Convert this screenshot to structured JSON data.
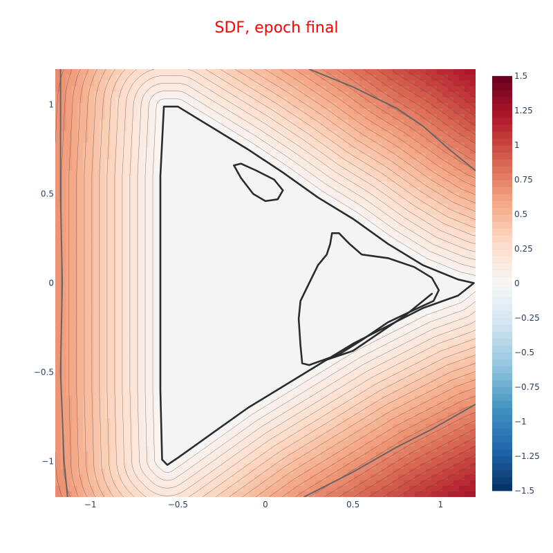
{
  "chart_data": {
    "type": "contour",
    "title": "SDF, epoch final",
    "title_color": "#ff0000",
    "xlabel": "",
    "ylabel": "",
    "xlim": [
      -1.2,
      1.2
    ],
    "ylim": [
      -1.2,
      1.2
    ],
    "x_ticks": [
      {
        "value": -1,
        "label": "−1"
      },
      {
        "value": -0.5,
        "label": "−0.5"
      },
      {
        "value": 0,
        "label": "0"
      },
      {
        "value": 0.5,
        "label": "0.5"
      },
      {
        "value": 1,
        "label": "1"
      }
    ],
    "y_ticks": [
      {
        "value": 1,
        "label": "1"
      },
      {
        "value": 0.5,
        "label": "0.5"
      },
      {
        "value": 0,
        "label": "0"
      },
      {
        "value": -0.5,
        "label": "−0.5"
      },
      {
        "value": -1,
        "label": "−1"
      }
    ],
    "colorscale": "RdBu (reversed)",
    "colorbar": {
      "range": [
        -1.5,
        1.5
      ],
      "ticks": [
        {
          "value": 1.5,
          "label": "1.5"
        },
        {
          "value": 1.25,
          "label": "1.25"
        },
        {
          "value": 1,
          "label": "1"
        },
        {
          "value": 0.75,
          "label": "0.75"
        },
        {
          "value": 0.5,
          "label": "0.5"
        },
        {
          "value": 0.25,
          "label": "0.25"
        },
        {
          "value": 0,
          "label": "0"
        },
        {
          "value": -0.25,
          "label": "−0.25"
        },
        {
          "value": -0.5,
          "label": "−0.5"
        },
        {
          "value": -0.75,
          "label": "−0.75"
        },
        {
          "value": -1,
          "label": "−1"
        },
        {
          "value": -1.25,
          "label": "−1.25"
        },
        {
          "value": -1.5,
          "label": "−1.5"
        }
      ],
      "step": 0.05
    },
    "zero_level_contours": [
      {
        "name": "outer-triangle",
        "points": [
          [
            -0.58,
            0.99
          ],
          [
            -0.5,
            0.99
          ],
          [
            -0.3,
            0.87
          ],
          [
            -0.1,
            0.75
          ],
          [
            0.1,
            0.62
          ],
          [
            0.3,
            0.48
          ],
          [
            0.5,
            0.36
          ],
          [
            0.7,
            0.22
          ],
          [
            0.9,
            0.1
          ],
          [
            1.1,
            0.02
          ],
          [
            1.19,
            0.0
          ],
          [
            1.1,
            -0.07
          ],
          [
            0.9,
            -0.14
          ],
          [
            0.7,
            -0.24
          ],
          [
            0.5,
            -0.34
          ],
          [
            0.3,
            -0.46
          ],
          [
            0.1,
            -0.58
          ],
          [
            -0.1,
            -0.7
          ],
          [
            -0.3,
            -0.84
          ],
          [
            -0.5,
            -0.98
          ],
          [
            -0.56,
            -1.02
          ],
          [
            -0.59,
            -0.99
          ],
          [
            -0.6,
            -0.6
          ],
          [
            -0.6,
            0.0
          ],
          [
            -0.6,
            0.6
          ],
          [
            -0.58,
            0.99
          ]
        ]
      },
      {
        "name": "inner-loop-top",
        "points": [
          [
            -0.18,
            0.66
          ],
          [
            -0.14,
            0.67
          ],
          [
            -0.05,
            0.63
          ],
          [
            0.05,
            0.58
          ],
          [
            0.1,
            0.52
          ],
          [
            0.07,
            0.47
          ],
          [
            0.0,
            0.46
          ],
          [
            -0.07,
            0.5
          ],
          [
            -0.14,
            0.59
          ],
          [
            -0.18,
            0.66
          ]
        ]
      },
      {
        "name": "inner-loop-right",
        "points": [
          [
            0.38,
            0.28
          ],
          [
            0.42,
            0.28
          ],
          [
            0.48,
            0.22
          ],
          [
            0.55,
            0.16
          ],
          [
            0.7,
            0.14
          ],
          [
            0.85,
            0.09
          ],
          [
            0.95,
            0.03
          ],
          [
            0.99,
            -0.04
          ],
          [
            0.96,
            -0.1
          ],
          [
            0.85,
            -0.15
          ],
          [
            0.7,
            -0.22
          ],
          [
            0.55,
            -0.32
          ],
          [
            0.42,
            -0.4
          ],
          [
            0.25,
            -0.46
          ],
          [
            0.21,
            -0.45
          ],
          [
            0.2,
            -0.35
          ],
          [
            0.19,
            -0.2
          ],
          [
            0.2,
            -0.1
          ],
          [
            0.25,
            0.0
          ],
          [
            0.3,
            0.1
          ],
          [
            0.35,
            0.16
          ],
          [
            0.37,
            0.22
          ],
          [
            0.38,
            0.28
          ]
        ]
      },
      {
        "name": "inner-cross",
        "points": [
          [
            0.95,
            -0.06
          ],
          [
            0.8,
            -0.18
          ],
          [
            0.65,
            -0.28
          ],
          [
            0.5,
            -0.38
          ],
          [
            0.35,
            -0.43
          ]
        ]
      }
    ],
    "outer_level_contours": [
      {
        "name": "left-level",
        "points": [
          [
            -1.17,
            1.2
          ],
          [
            -1.17,
            0.5
          ],
          [
            -1.16,
            0.0
          ],
          [
            -1.17,
            -0.5
          ],
          [
            -1.15,
            -1.0
          ],
          [
            -1.13,
            -1.2
          ]
        ]
      },
      {
        "name": "top-right-level",
        "points": [
          [
            0.25,
            1.2
          ],
          [
            0.5,
            1.1
          ],
          [
            0.75,
            0.98
          ],
          [
            0.9,
            0.88
          ],
          [
            1.05,
            0.75
          ],
          [
            1.2,
            0.63
          ]
        ]
      },
      {
        "name": "bottom-right-level",
        "points": [
          [
            0.22,
            -1.2
          ],
          [
            0.5,
            -1.06
          ],
          [
            0.75,
            -0.92
          ],
          [
            0.95,
            -0.82
          ],
          [
            1.2,
            -0.68
          ]
        ]
      }
    ]
  }
}
